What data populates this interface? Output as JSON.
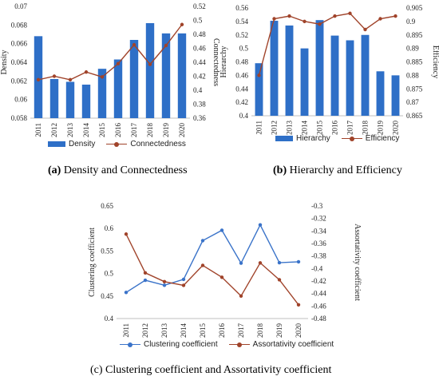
{
  "chart_data": [
    {
      "panel": "a",
      "type": "bar+line",
      "categories": [
        "2011",
        "2012",
        "2013",
        "2014",
        "2015",
        "2016",
        "2017",
        "2018",
        "2019",
        "2020"
      ],
      "series": [
        {
          "name": "Density",
          "kind": "bar",
          "axis": "left",
          "color": "#2e6fc7",
          "values": [
            0.0668,
            0.0622,
            0.0619,
            0.0616,
            0.0633,
            0.0643,
            0.0664,
            0.0682,
            0.0671,
            0.0671
          ]
        },
        {
          "name": "Connectedness",
          "kind": "line",
          "axis": "right",
          "color": "#a0432a",
          "values": [
            0.415,
            0.42,
            0.415,
            0.426,
            0.419,
            0.438,
            0.465,
            0.437,
            0.464,
            0.494
          ]
        }
      ],
      "ylabel_left": "Density",
      "ylim_left": [
        0.058,
        0.07
      ],
      "yticks_left": [
        "0.058",
        "0.06",
        "0.062",
        "0.064",
        "0.066",
        "0.068",
        "0.07"
      ],
      "ylabel_right": "Connectedness",
      "ylim_right": [
        0.36,
        0.52
      ],
      "yticks_right": [
        "0.36",
        "0.38",
        "0.4",
        "0.42",
        "0.44",
        "0.46",
        "0.48",
        "0.5",
        "0.52"
      ],
      "legend": "bottom",
      "caption_label": "(a)",
      "caption_text": "Density and Connectedness"
    },
    {
      "panel": "b",
      "type": "bar+line",
      "categories": [
        "2011",
        "2012",
        "2013",
        "2014",
        "2015",
        "2016",
        "2017",
        "2018",
        "2019",
        "2020"
      ],
      "series": [
        {
          "name": "Hierarchy",
          "kind": "bar",
          "axis": "left",
          "color": "#2e6fc7",
          "values": [
            0.478,
            0.541,
            0.534,
            0.5,
            0.542,
            0.519,
            0.512,
            0.52,
            0.466,
            0.46
          ]
        },
        {
          "name": "Efficiency",
          "kind": "line",
          "axis": "right",
          "color": "#a0432a",
          "values": [
            0.88,
            0.901,
            0.902,
            0.9,
            0.899,
            0.902,
            0.903,
            0.897,
            0.901,
            0.902
          ]
        }
      ],
      "ylabel_left": "Hierarchy",
      "ylim_left": [
        0.4,
        0.56
      ],
      "yticks_left": [
        "0.4",
        "0.42",
        "0.44",
        "0.46",
        "0.48",
        "0.5",
        "0.52",
        "0.54",
        "0.56"
      ],
      "ylabel_right": "Efficiency",
      "ylim_right": [
        0.865,
        0.905
      ],
      "yticks_right": [
        "0.865",
        "0.87",
        "0.875",
        "0.88",
        "0.885",
        "0.89",
        "0.895",
        "0.9",
        "0.905"
      ],
      "legend": "bottom",
      "caption_label": "(b)",
      "caption_text": "Hierarchy and Efficiency"
    },
    {
      "panel": "c",
      "type": "line",
      "categories": [
        "2011",
        "2012",
        "2013",
        "2014",
        "2015",
        "2016",
        "2017",
        "2018",
        "2019",
        "2020"
      ],
      "series": [
        {
          "name": "Clustering coefficient",
          "kind": "line",
          "axis": "left",
          "color": "#3a73c9",
          "values": [
            0.458,
            0.485,
            0.474,
            0.487,
            0.573,
            0.596,
            0.523,
            0.608,
            0.524,
            0.526
          ]
        },
        {
          "name": "Assortativity coefficient",
          "kind": "line",
          "axis": "right",
          "color": "#a0432a",
          "values": [
            -0.345,
            -0.407,
            -0.421,
            -0.427,
            -0.395,
            -0.414,
            -0.444,
            -0.391,
            -0.418,
            -0.458
          ]
        }
      ],
      "ylabel_left": "Clustering coefficient",
      "ylim_left": [
        0.4,
        0.65
      ],
      "yticks_left": [
        "0.4",
        "0.45",
        "0.5",
        "0.55",
        "0.6",
        "0.65"
      ],
      "ylabel_right": "Assortativity coefficient",
      "ylim_right": [
        -0.48,
        -0.3
      ],
      "yticks_right": [
        "-0.48",
        "-0.46",
        "-0.44",
        "-0.42",
        "-0.4",
        "-0.38",
        "-0.36",
        "-0.34",
        "-0.32",
        "-0.3"
      ],
      "legend": "bottom",
      "caption_label": "(c)",
      "caption_text": "Clustering coefficient and Assortativity coefficient"
    }
  ]
}
